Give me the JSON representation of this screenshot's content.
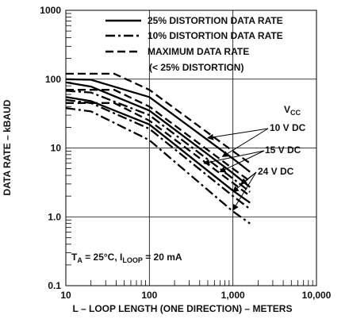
{
  "chart_data": {
    "type": "line",
    "xscale": "log",
    "yscale": "log",
    "xlim": [
      10,
      10000
    ],
    "ylim": [
      0.1,
      1000
    ],
    "xlabel": "L – LOOP LENGTH (ONE DIRECTION) – METERS",
    "ylabel": "DATA RATE – kBAUD",
    "x_ticks": [
      {
        "value": 10,
        "label": "10"
      },
      {
        "value": 100,
        "label": "100"
      },
      {
        "value": 1000,
        "label": "1,000"
      },
      {
        "value": 10000,
        "label": "10,000"
      }
    ],
    "y_ticks": [
      {
        "value": 0.1,
        "label": "0.1"
      },
      {
        "value": 1,
        "label": "1.0"
      },
      {
        "value": 10,
        "label": "10"
      },
      {
        "value": 100,
        "label": "100"
      },
      {
        "value": 1000,
        "label": "1000"
      }
    ],
    "grid": "major",
    "legend": {
      "placement": "top",
      "entries": [
        {
          "style": "solid",
          "label": "25% DISTORTION DATA RATE"
        },
        {
          "style": "dashdot",
          "label": "10% DISTORTION DATA RATE"
        },
        {
          "style": "dashed",
          "label": "MAXIMUM DATA RATE",
          "label2": "(< 25% DISTORTION)"
        }
      ]
    },
    "annotations": {
      "vcc": {
        "main": "V",
        "sub": "CC"
      },
      "voltages": [
        "10 V DC",
        "15 V DC",
        "24 V DC"
      ],
      "conditions": {
        "t_main": "T",
        "t_sub": "A",
        "t_rest": " = 25°C, I",
        "i_sub": "LOOP",
        "i_rest": " = 20 mA"
      }
    },
    "series": [
      {
        "style": "dashed",
        "points": [
          [
            10,
            120
          ],
          [
            38,
            120
          ],
          [
            100,
            70
          ],
          [
            1000,
            9
          ],
          [
            1600,
            6
          ]
        ]
      },
      {
        "style": "solid",
        "points": [
          [
            10,
            100
          ],
          [
            20,
            98
          ],
          [
            100,
            55
          ],
          [
            1000,
            7
          ],
          [
            1600,
            4.5
          ]
        ]
      },
      {
        "style": "solid",
        "points": [
          [
            10,
            90
          ],
          [
            20,
            78
          ],
          [
            100,
            35
          ],
          [
            1000,
            4.3
          ],
          [
            1600,
            2.7
          ]
        ]
      },
      {
        "style": "dashdot",
        "points": [
          [
            10,
            68
          ],
          [
            20,
            64
          ],
          [
            100,
            30
          ],
          [
            1000,
            3.6
          ],
          [
            1600,
            2.3
          ]
        ]
      },
      {
        "style": "dashed",
        "points": [
          [
            10,
            70
          ],
          [
            38,
            70
          ],
          [
            100,
            40
          ],
          [
            1000,
            5
          ],
          [
            1600,
            3.3
          ]
        ]
      },
      {
        "style": "dashed",
        "points": [
          [
            10,
            45
          ],
          [
            38,
            45
          ],
          [
            100,
            25
          ],
          [
            1000,
            3.1
          ],
          [
            1600,
            2
          ]
        ]
      },
      {
        "style": "solid",
        "points": [
          [
            10,
            55
          ],
          [
            20,
            48
          ],
          [
            100,
            22
          ],
          [
            1000,
            2.4
          ],
          [
            1600,
            1.6
          ]
        ]
      },
      {
        "style": "dashdot",
        "points": [
          [
            10,
            50
          ],
          [
            20,
            45
          ],
          [
            100,
            19
          ],
          [
            1000,
            2
          ],
          [
            1600,
            1.3
          ]
        ]
      },
      {
        "style": "dashdot",
        "points": [
          [
            10,
            38
          ],
          [
            20,
            34
          ],
          [
            100,
            13
          ],
          [
            1000,
            1.2
          ],
          [
            1600,
            0.8
          ]
        ]
      }
    ]
  }
}
